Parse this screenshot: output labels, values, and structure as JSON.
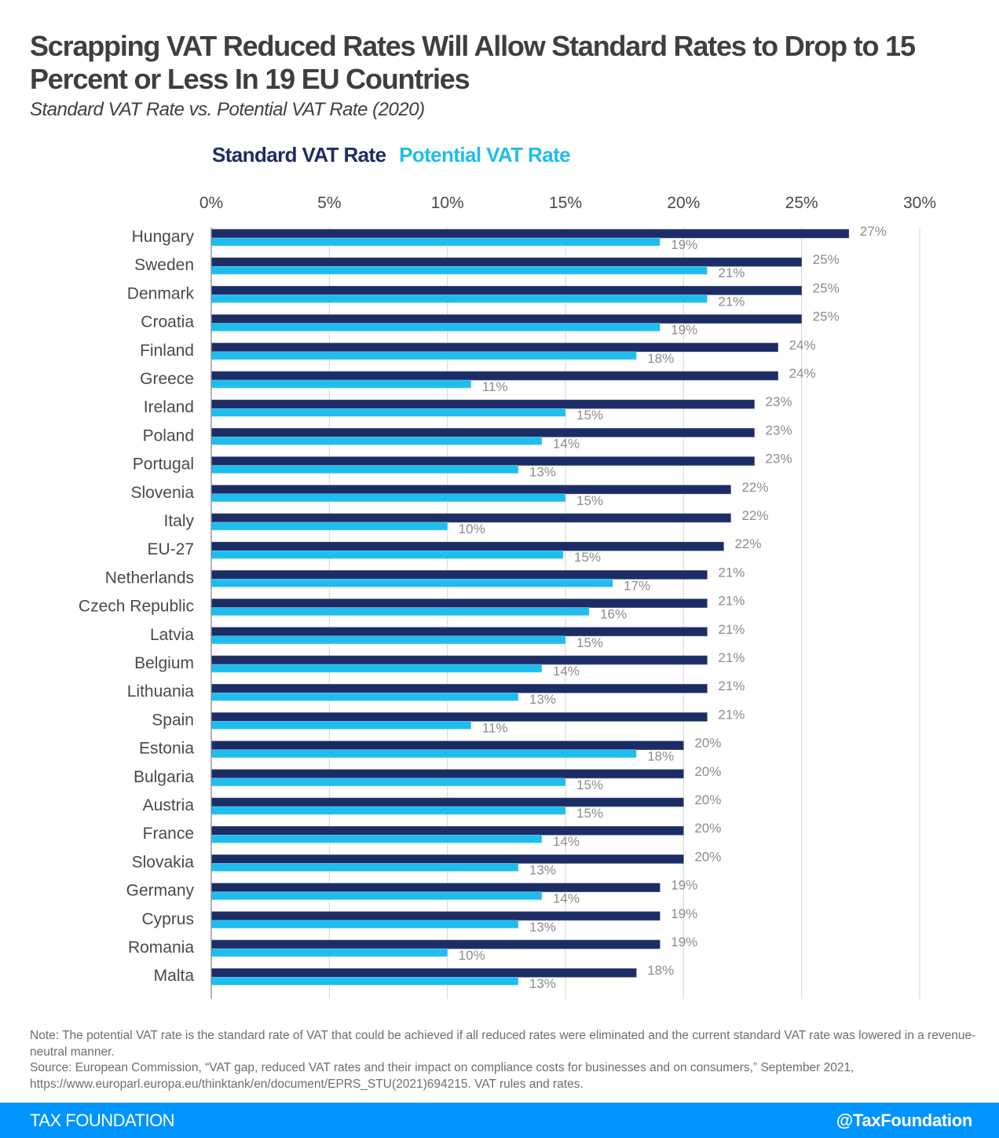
{
  "chart_data": {
    "type": "bar",
    "orientation": "horizontal",
    "title": "Scrapping VAT Reduced Rates Will Allow Standard Rates to Drop to 15 Percent or Less In 19 EU Countries",
    "subtitle": "Standard VAT Rate vs. Potential VAT Rate (2020)",
    "xlabel": "",
    "ylabel": "",
    "xlim": [
      0,
      30
    ],
    "xticks": [
      0,
      5,
      10,
      15,
      20,
      25,
      30
    ],
    "xtick_labels": [
      "0%",
      "5%",
      "10%",
      "15%",
      "20%",
      "25%",
      "30%"
    ],
    "grid": true,
    "legend_position": "top-left",
    "categories": [
      "Hungary",
      "Sweden",
      "Denmark",
      "Croatia",
      "Finland",
      "Greece",
      "Ireland",
      "Poland",
      "Portugal",
      "Slovenia",
      "Italy",
      "EU-27",
      "Netherlands",
      "Czech Republic",
      "Latvia",
      "Belgium",
      "Lithuania",
      "Spain",
      "Estonia",
      "Bulgaria",
      "Austria",
      "France",
      "Slovakia",
      "Germany",
      "Cyprus",
      "Romania",
      "Malta"
    ],
    "series": [
      {
        "name": "Standard VAT Rate",
        "color": "#1c2d66",
        "values": [
          27,
          25,
          25,
          25,
          24,
          24,
          23,
          23,
          23,
          22,
          22,
          21.7,
          21,
          21,
          21,
          21,
          21,
          21,
          20,
          20,
          20,
          20,
          20,
          19,
          19,
          19,
          18
        ],
        "labels": [
          "27%",
          "25%",
          "25%",
          "25%",
          "24%",
          "24%",
          "23%",
          "23%",
          "23%",
          "22%",
          "22%",
          "22%",
          "21%",
          "21%",
          "21%",
          "21%",
          "21%",
          "21%",
          "20%",
          "20%",
          "20%",
          "20%",
          "20%",
          "19%",
          "19%",
          "19%",
          "18%"
        ]
      },
      {
        "name": "Potential VAT Rate",
        "color": "#1fbdee",
        "values": [
          19,
          21,
          21,
          19,
          18,
          11,
          15,
          14,
          13,
          15,
          10,
          14.9,
          17,
          16,
          15,
          14,
          13,
          11,
          18,
          15,
          15,
          14,
          13,
          14,
          13,
          10,
          13
        ],
        "labels": [
          "19%",
          "21%",
          "21%",
          "19%",
          "18%",
          "11%",
          "15%",
          "14%",
          "13%",
          "15%",
          "10%",
          "15%",
          "17%",
          "16%",
          "15%",
          "14%",
          "13%",
          "11%",
          "18%",
          "15%",
          "15%",
          "14%",
          "13%",
          "14%",
          "13%",
          "10%",
          "13%"
        ]
      }
    ]
  },
  "header": {
    "title": "Scrapping VAT Reduced Rates Will Allow Standard Rates to Drop to 15 Percent or Less In 19 EU Countries",
    "subtitle": "Standard VAT Rate vs. Potential VAT Rate (2020)"
  },
  "legend": {
    "standard": "Standard VAT Rate",
    "potential": "Potential VAT Rate"
  },
  "notes": {
    "note": "Note: The potential VAT rate is the standard rate of VAT that could be achieved if all reduced rates were eliminated and the current standard VAT rate was lowered in a revenue-neutral manner.",
    "source": "Source: European Commission, “VAT gap, reduced VAT rates and their impact on compliance costs for businesses and on consumers,” September 2021, https://www.europarl.europa.eu/thinktank/en/document/EPRS_STU(2021)694215. VAT rules and rates."
  },
  "footer": {
    "brand": "TAX FOUNDATION",
    "handle": "@TaxFoundation"
  }
}
